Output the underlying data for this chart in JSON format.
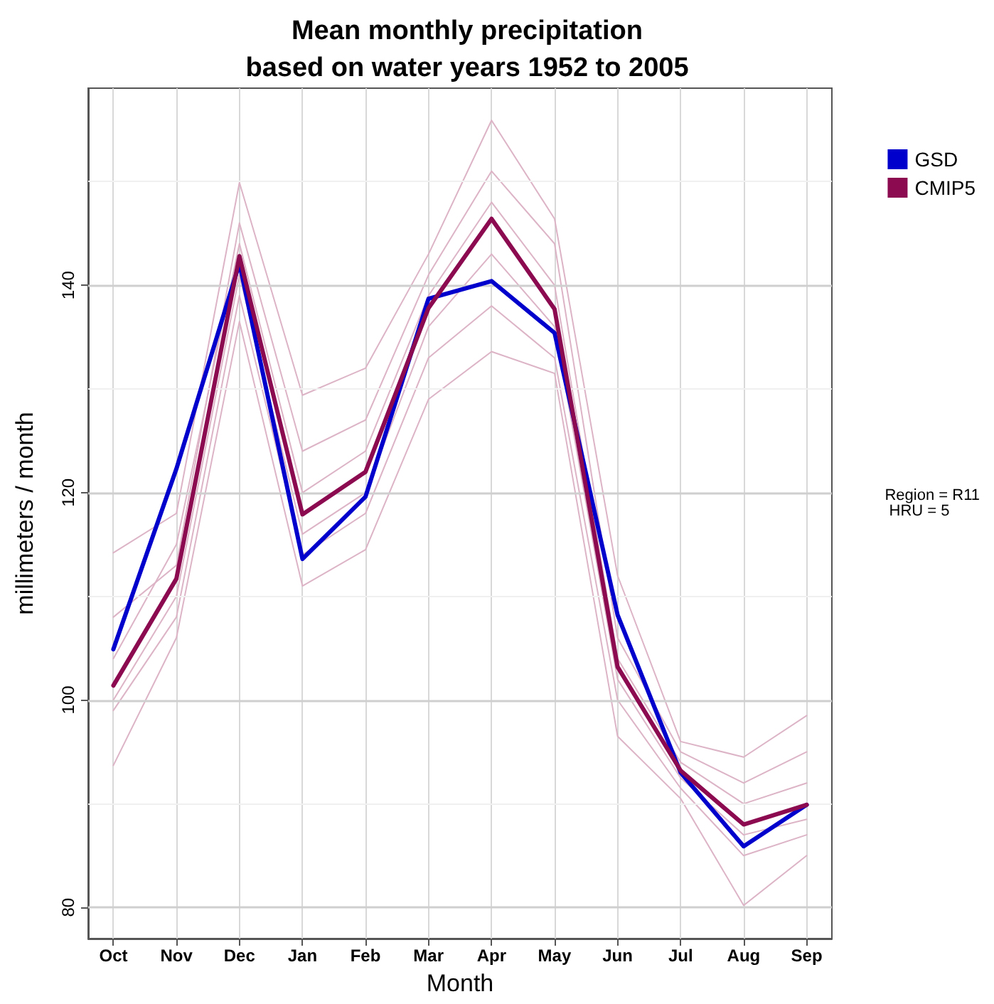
{
  "chart_data": {
    "type": "line",
    "title": "Mean monthly precipitation\nbased on water years 1952 to 2005",
    "xlabel": "Month",
    "ylabel": "millimeters / month",
    "categories": [
      "Oct",
      "Nov",
      "Dec",
      "Jan",
      "Feb",
      "Mar",
      "Apr",
      "May",
      "Jun",
      "Jul",
      "Aug",
      "Sep"
    ],
    "series": [
      {
        "color": "#dcb4c6",
        "values": [
          114.2,
          118,
          149.9,
          129.4,
          132,
          143,
          155.9,
          146.4,
          112,
          96,
          94.5,
          98.5
        ]
      },
      {
        "color": "#dcb4c6",
        "values": [
          93.7,
          106,
          136.5,
          111,
          114.5,
          129,
          133.6,
          131.5,
          96.5,
          90.5,
          80.2,
          85
        ]
      },
      {
        "color": "#dcb4c6",
        "values": [
          108,
          113,
          146,
          124,
          127,
          141,
          151,
          144,
          106,
          95,
          92,
          95
        ]
      },
      {
        "color": "#dcb4c6",
        "values": [
          99,
          108,
          139,
          114,
          118,
          133,
          138,
          133,
          100,
          91.5,
          85,
          87
        ]
      },
      {
        "color": "#dcb4c6",
        "values": [
          104,
          115,
          144,
          120,
          124,
          139,
          148,
          140,
          104,
          94,
          90,
          92
        ]
      },
      {
        "color": "#dcb4c6",
        "values": [
          100,
          110,
          141,
          116,
          120,
          136,
          143,
          136,
          102,
          92.5,
          87,
          88.5
        ]
      },
      {
        "name": "GSD",
        "color": "#0000cc",
        "values": [
          104.9,
          122.3,
          142.1,
          113.6,
          119.6,
          138.7,
          140.4,
          135.4,
          108.2,
          93.0,
          85.9,
          89.9
        ]
      },
      {
        "name": "CMIP5",
        "color": "#8b0a50",
        "values": [
          101.4,
          111.7,
          142.8,
          117.9,
          122.0,
          137.8,
          146.4,
          137.7,
          103.2,
          93.2,
          88.0,
          89.9
        ]
      }
    ],
    "ylim": [
      77,
      159
    ],
    "yticks": [
      80,
      {
        "value": 90,
        "label": null
      },
      100,
      {
        "value": 110,
        "label": null
      },
      120,
      {
        "value": 130,
        "label": null
      },
      140,
      {
        "value": 150,
        "label": null
      }
    ],
    "grid": true,
    "legend": "top right",
    "marker": "none",
    "line_style": "solid",
    "annotations": [
      "Region = R11\n HRU = 5"
    ]
  }
}
